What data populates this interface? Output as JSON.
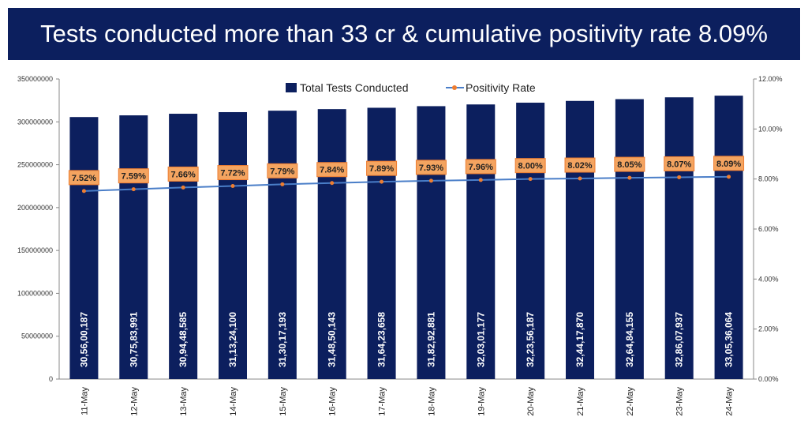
{
  "title": "Tests conducted more than 33 cr & cumulative positivity rate 8.09%",
  "colors": {
    "banner": "#0c1f5e",
    "bars": "#0c1f5e",
    "line": "#4a7ec8",
    "marker": "#ed7d31",
    "label_box": "#f4a460"
  },
  "chart_data": {
    "type": "bar",
    "categories": [
      "11-May",
      "12-May",
      "13-May",
      "14-May",
      "15-May",
      "16-May",
      "17-May",
      "18-May",
      "19-May",
      "20-May",
      "21-May",
      "22-May",
      "23-May",
      "24-May"
    ],
    "series": [
      {
        "name": "Total Tests Conducted",
        "type": "bar",
        "axis": "left",
        "values": [
          305600187,
          307583991,
          309448585,
          311324100,
          313017193,
          314850143,
          316423658,
          318292881,
          320301177,
          322356187,
          324417870,
          326484155,
          328607937,
          330536064
        ],
        "labels": [
          "30,56,00,187",
          "30,75,83,991",
          "30,94,48,585",
          "31,13,24,100",
          "31,30,17,193",
          "31,48,50,143",
          "31,64,23,658",
          "31,82,92,881",
          "32,03,01,177",
          "32,23,56,187",
          "32,44,17,870",
          "32,64,84,155",
          "32,86,07,937",
          "33,05,36,064"
        ]
      },
      {
        "name": "Positivity Rate",
        "type": "line",
        "axis": "right",
        "values": [
          7.52,
          7.59,
          7.66,
          7.72,
          7.79,
          7.84,
          7.89,
          7.93,
          7.96,
          8.0,
          8.02,
          8.05,
          8.07,
          8.09
        ],
        "labels": [
          "7.52%",
          "7.59%",
          "7.66%",
          "7.72%",
          "7.79%",
          "7.84%",
          "7.89%",
          "7.93%",
          "7.96%",
          "8.00%",
          "8.02%",
          "8.05%",
          "8.07%",
          "8.09%"
        ]
      }
    ],
    "left_axis": {
      "ylim": [
        0,
        350000000
      ],
      "ticks": [
        "0",
        "50000000",
        "100000000",
        "150000000",
        "200000000",
        "250000000",
        "300000000",
        "350000000"
      ]
    },
    "right_axis": {
      "ylim": [
        0,
        12
      ],
      "ticks": [
        "0.00%",
        "2.00%",
        "4.00%",
        "6.00%",
        "8.00%",
        "10.00%",
        "12.00%"
      ]
    },
    "legend": "top-center",
    "grid": false
  }
}
